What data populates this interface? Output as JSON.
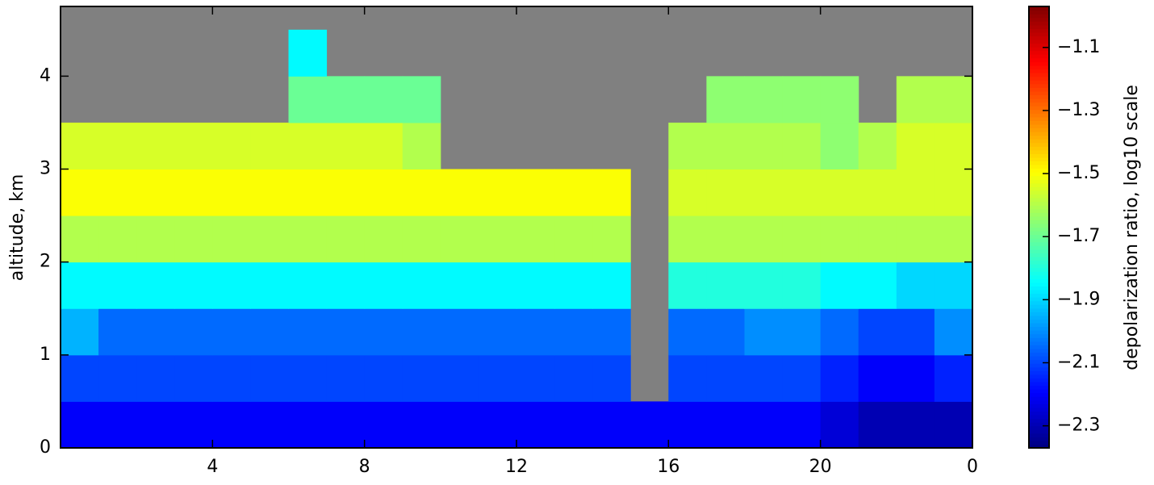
{
  "chart_data": {
    "type": "heatmap",
    "xlabel": null,
    "ylabel": "altitude, km",
    "colorbar_label": "depolarization ratio, log10 scale",
    "colormap": "jet",
    "missing_color": "#808080",
    "xlim": [
      0,
      24
    ],
    "xticks": [
      4,
      8,
      12,
      16,
      20,
      {
        "value": 24,
        "label": "0"
      }
    ],
    "ylim": [
      0,
      4.75
    ],
    "yticks": [
      0,
      1,
      2,
      3,
      4
    ],
    "clim": [
      -2.37,
      -0.97
    ],
    "cticks": [
      {
        "value": -1.1,
        "label": "−1.1"
      },
      {
        "value": -1.3,
        "label": "−1.3"
      },
      {
        "value": -1.5,
        "label": "−1.5"
      },
      {
        "value": -1.7,
        "label": "−1.7"
      },
      {
        "value": -1.9,
        "label": "−1.9"
      },
      {
        "value": -2.1,
        "label": "−2.1"
      },
      {
        "value": -2.3,
        "label": "−2.3"
      }
    ],
    "x_edges": [
      0,
      1,
      2,
      3,
      4,
      5,
      6,
      7,
      8,
      9,
      10,
      11,
      12,
      13,
      14,
      15,
      16,
      17,
      18,
      19,
      20,
      21,
      22,
      23,
      24
    ],
    "y_edges": [
      0,
      0.5,
      1,
      1.5,
      2,
      2.5,
      3,
      3.5,
      4,
      4.5,
      4.75
    ],
    "values": [
      [
        -2.2,
        -2.2,
        -2.2,
        -2.2,
        -2.2,
        -2.2,
        -2.2,
        -2.2,
        -2.2,
        -2.2,
        -2.2,
        -2.2,
        -2.2,
        -2.2,
        -2.2,
        -2.2,
        -2.2,
        -2.2,
        -2.2,
        -2.2,
        -2.25,
        -2.3,
        -2.3,
        -2.3
      ],
      [
        -2.1,
        -2.1,
        -2.1,
        -2.1,
        -2.1,
        -2.1,
        -2.1,
        -2.1,
        -2.1,
        -2.1,
        -2.1,
        -2.1,
        -2.1,
        -2.1,
        -2.1,
        null,
        -2.1,
        -2.1,
        -2.1,
        -2.1,
        -2.15,
        -2.2,
        -2.2,
        -2.15
      ],
      [
        -1.95,
        -2.05,
        -2.05,
        -2.05,
        -2.05,
        -2.05,
        -2.05,
        -2.05,
        -2.05,
        -2.05,
        -2.05,
        -2.05,
        -2.05,
        -2.05,
        -2.05,
        null,
        -2.05,
        -2.05,
        -2.0,
        -2.0,
        -2.05,
        -2.1,
        -2.1,
        -2.0
      ],
      [
        -1.85,
        -1.85,
        -1.85,
        -1.85,
        -1.85,
        -1.85,
        -1.85,
        -1.85,
        -1.85,
        -1.85,
        -1.85,
        -1.85,
        -1.85,
        -1.85,
        -1.85,
        null,
        -1.8,
        -1.8,
        -1.8,
        -1.8,
        -1.85,
        -1.85,
        -1.9,
        -1.9
      ],
      [
        -1.6,
        -1.6,
        -1.6,
        -1.6,
        -1.6,
        -1.6,
        -1.6,
        -1.6,
        -1.6,
        -1.6,
        -1.6,
        -1.6,
        -1.6,
        -1.6,
        -1.6,
        null,
        -1.6,
        -1.6,
        -1.6,
        -1.6,
        -1.6,
        -1.6,
        -1.6,
        -1.6
      ],
      [
        -1.5,
        -1.5,
        -1.5,
        -1.5,
        -1.5,
        -1.5,
        -1.5,
        -1.5,
        -1.5,
        -1.5,
        -1.5,
        -1.5,
        -1.5,
        -1.5,
        -1.5,
        null,
        -1.55,
        -1.55,
        -1.55,
        -1.55,
        -1.55,
        -1.55,
        -1.55,
        -1.55
      ],
      [
        -1.55,
        -1.55,
        -1.55,
        -1.55,
        -1.55,
        -1.55,
        -1.55,
        -1.55,
        -1.55,
        -1.6,
        null,
        null,
        null,
        null,
        null,
        null,
        -1.6,
        -1.6,
        -1.6,
        -1.6,
        -1.65,
        -1.6,
        -1.55,
        -1.55
      ],
      [
        null,
        null,
        null,
        null,
        null,
        null,
        -1.7,
        -1.7,
        -1.7,
        -1.7,
        null,
        null,
        null,
        null,
        null,
        null,
        null,
        -1.65,
        -1.65,
        -1.65,
        -1.65,
        null,
        -1.6,
        -1.6
      ],
      [
        null,
        null,
        null,
        null,
        null,
        null,
        -1.85,
        null,
        null,
        null,
        null,
        null,
        null,
        null,
        null,
        null,
        null,
        null,
        null,
        null,
        null,
        null,
        null,
        null
      ],
      [
        null,
        null,
        null,
        null,
        null,
        null,
        null,
        null,
        null,
        null,
        null,
        null,
        null,
        null,
        null,
        null,
        null,
        null,
        null,
        null,
        null,
        null,
        null,
        null
      ]
    ]
  }
}
